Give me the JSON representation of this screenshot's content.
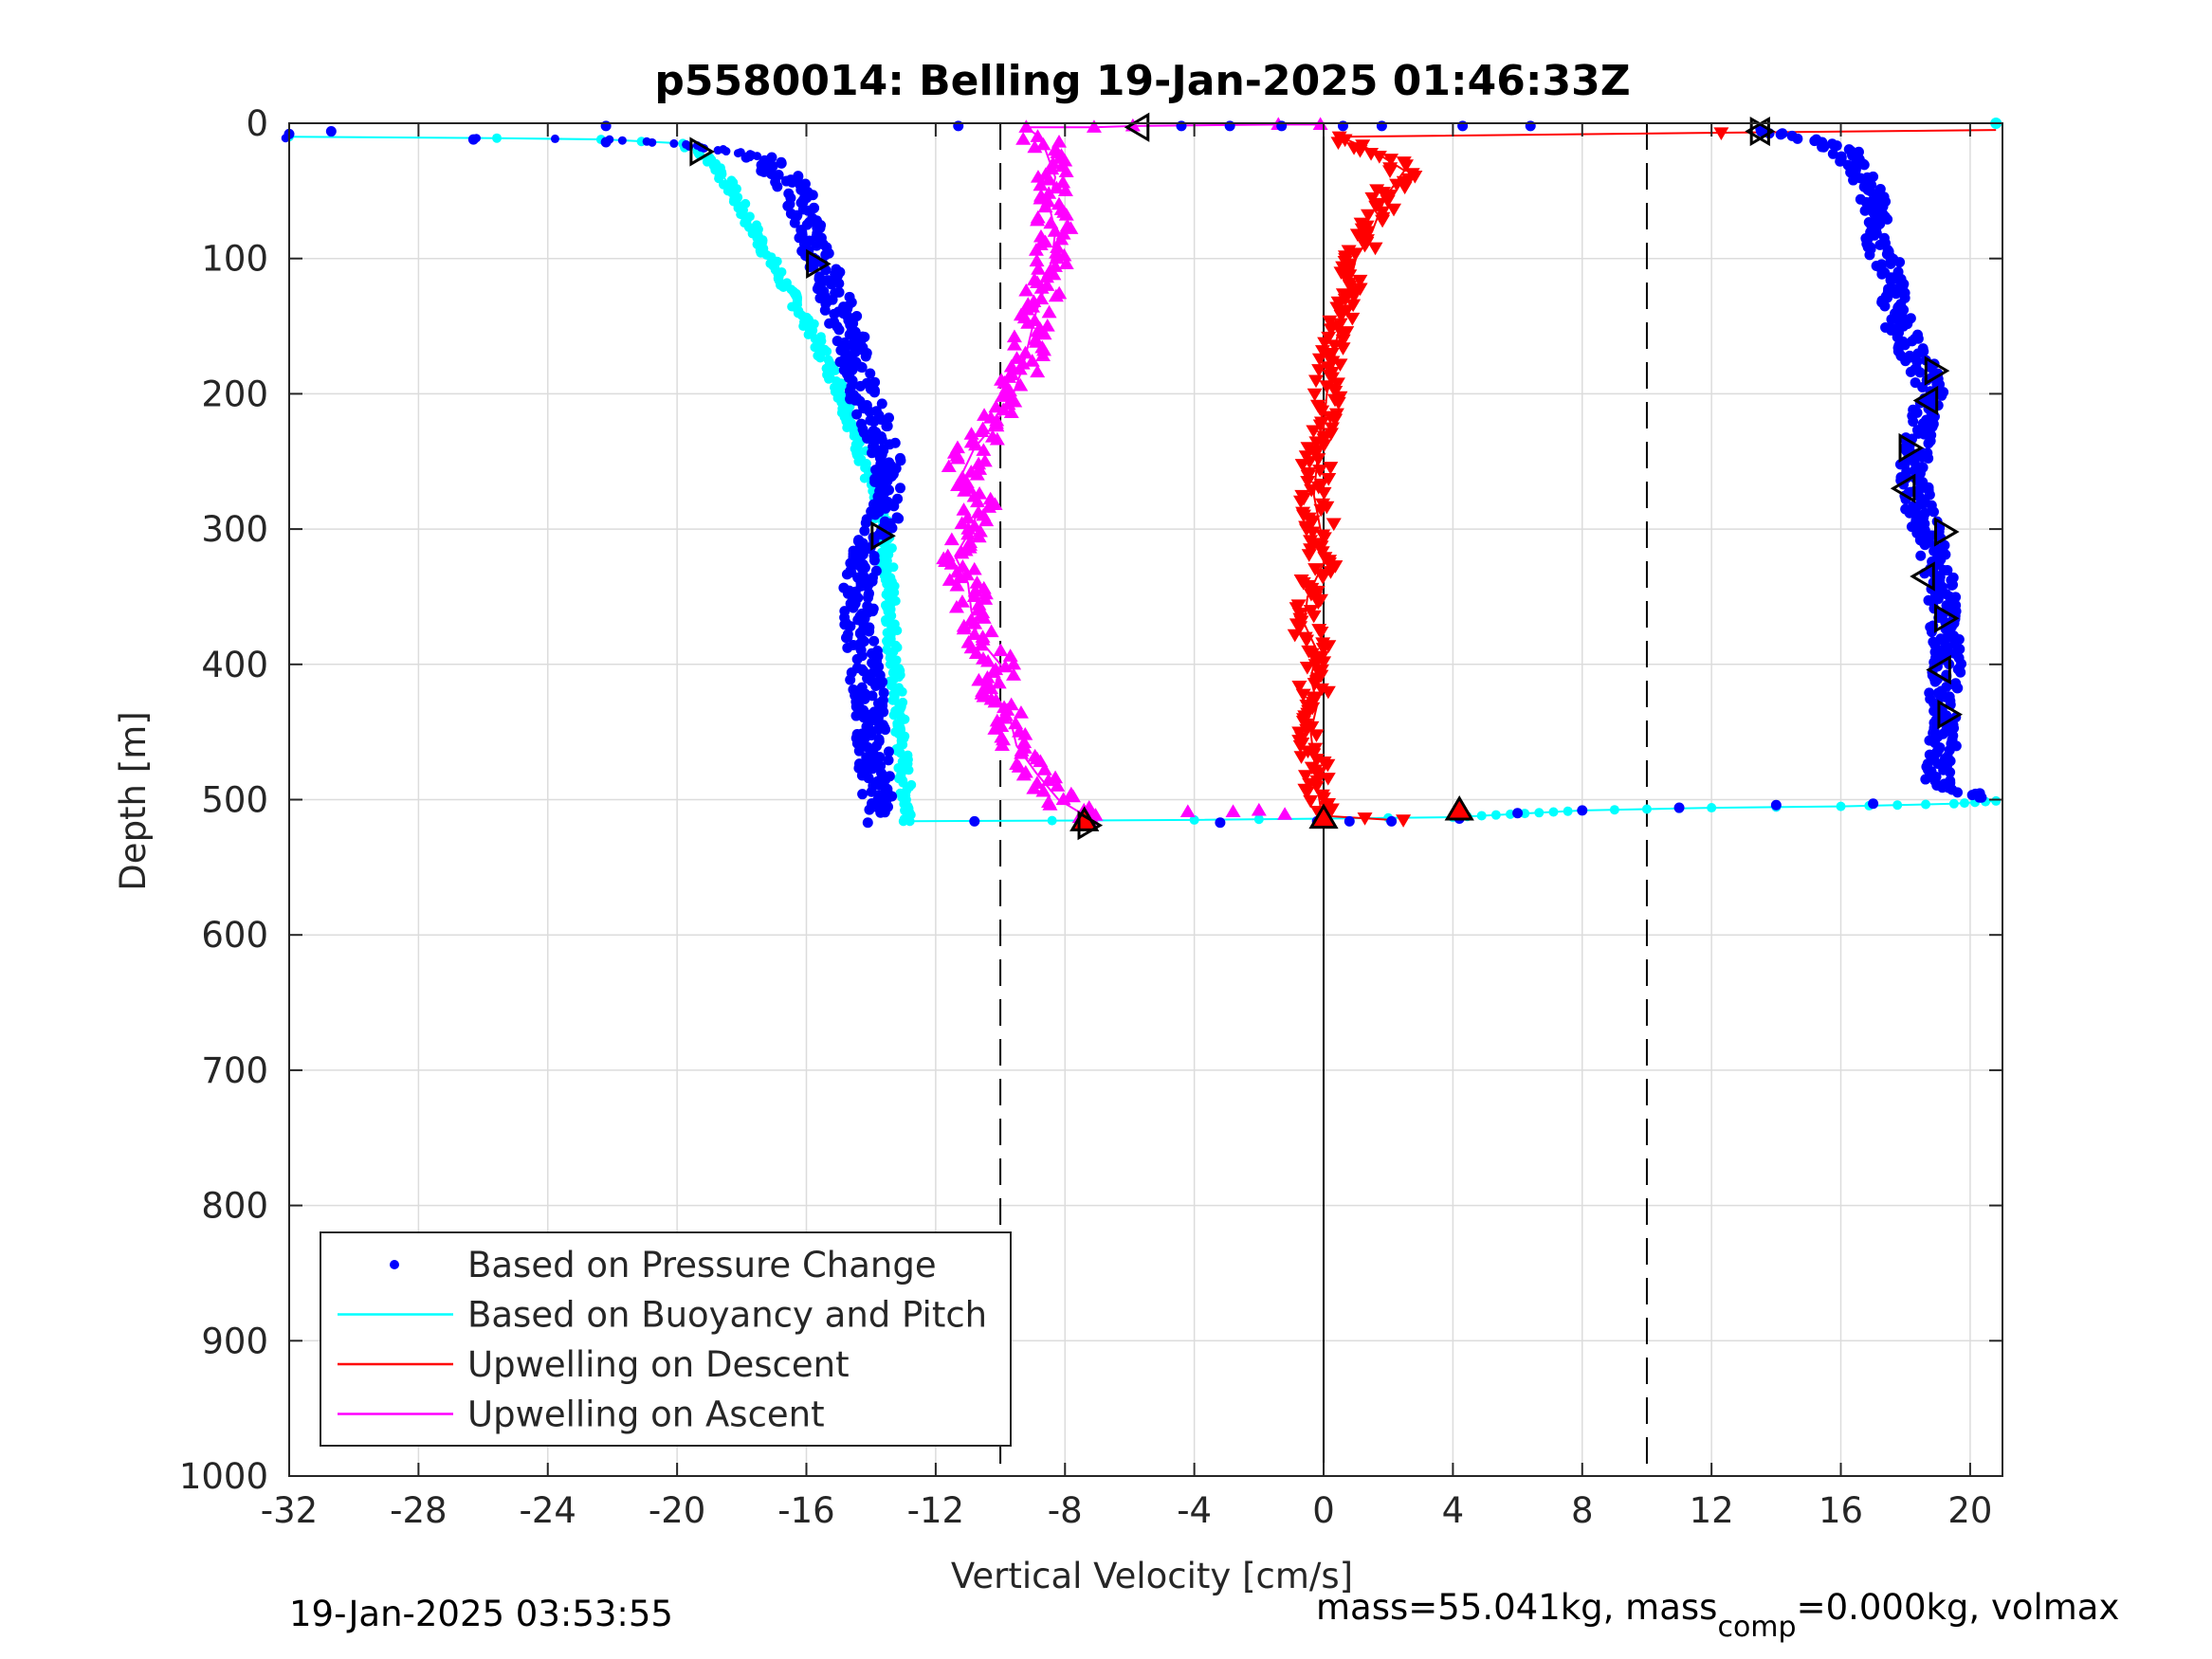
{
  "chart_data": {
    "type": "scatter",
    "title": "p5580014: Belling 19-Jan-2025 01:46:33Z",
    "xlabel": "Vertical Velocity [cm/s]",
    "ylabel": "Depth [m]",
    "xlim": [
      -32,
      21
    ],
    "ylim": [
      0,
      1000
    ],
    "y_reversed": true,
    "x_ticks": [
      -32,
      -28,
      -24,
      -20,
      -16,
      -12,
      -8,
      -4,
      0,
      4,
      8,
      12,
      16,
      20
    ],
    "y_ticks": [
      0,
      100,
      200,
      300,
      400,
      500,
      600,
      700,
      800,
      900,
      1000
    ],
    "grid": true,
    "reference_lines": [
      {
        "x": -10,
        "style": "dashed"
      },
      {
        "x": 0,
        "style": "solid"
      },
      {
        "x": 10,
        "style": "dashed"
      }
    ],
    "legend": {
      "placement": "bottom-left",
      "entries": [
        {
          "label": "Based on Pressure Change",
          "color": "#0000ff",
          "marker": "dot"
        },
        {
          "label": "Based on Buoyancy and Pitch",
          "color": "#00ffff",
          "marker": "line"
        },
        {
          "label": "Upwelling on Descent",
          "color": "#ff0000",
          "marker": "line"
        },
        {
          "label": "Upwelling on Ascent",
          "color": "#ff00ff",
          "marker": "line"
        }
      ]
    },
    "series": [
      {
        "name": "Based on Pressure Change",
        "color": "#0000ff",
        "descent": [
          [
            -17.5,
            25
          ],
          [
            -16.6,
            40
          ],
          [
            -16.1,
            60
          ],
          [
            -15.9,
            80
          ],
          [
            -15.4,
            110
          ],
          [
            -14.9,
            140
          ],
          [
            -14.6,
            165
          ],
          [
            -14.3,
            195
          ],
          [
            -13.7,
            230
          ],
          [
            -13.5,
            260
          ],
          [
            -13.6,
            290
          ],
          [
            -14.3,
            330
          ],
          [
            -14.4,
            360
          ],
          [
            -14.2,
            400
          ],
          [
            -14.0,
            440
          ],
          [
            -13.9,
            480
          ],
          [
            -13.7,
            510
          ]
        ],
        "ascent": [
          [
            20.8,
            499
          ],
          [
            19.0,
            490
          ],
          [
            19.2,
            460
          ],
          [
            19.1,
            430
          ],
          [
            19.3,
            400
          ],
          [
            19.2,
            370
          ],
          [
            19.0,
            330
          ],
          [
            18.5,
            290
          ],
          [
            18.2,
            260
          ],
          [
            18.4,
            230
          ],
          [
            18.8,
            200
          ],
          [
            18.5,
            180
          ],
          [
            17.8,
            150
          ],
          [
            17.6,
            120
          ],
          [
            17.2,
            90
          ],
          [
            17.1,
            60
          ],
          [
            16.6,
            40
          ],
          [
            16.1,
            20
          ],
          [
            14.5,
            10
          ],
          [
            13.2,
            5
          ]
        ],
        "surface_points": [
          [
            -32,
            8
          ],
          [
            -30.7,
            6
          ],
          [
            -26.3,
            12
          ],
          [
            -22.2,
            2
          ],
          [
            -22.2,
            14
          ],
          [
            -11.3,
            2
          ],
          [
            -4.4,
            2
          ],
          [
            -2.9,
            2
          ],
          [
            -1.3,
            2
          ],
          [
            0.6,
            2
          ],
          [
            1.8,
            2
          ],
          [
            4.3,
            2
          ],
          [
            6.4,
            2
          ]
        ],
        "bottom_points": [
          [
            -14.1,
            517
          ],
          [
            -10.8,
            516
          ],
          [
            -3.2,
            517
          ],
          [
            -0.2,
            516
          ],
          [
            0.8,
            516
          ],
          [
            2.1,
            516
          ],
          [
            4.2,
            514
          ],
          [
            6.0,
            510
          ],
          [
            8.0,
            508
          ],
          [
            11.0,
            506
          ],
          [
            14.0,
            504
          ],
          [
            17.0,
            503
          ]
        ]
      },
      {
        "name": "Based on Buoyancy and Pitch",
        "color": "#00ffff",
        "descent": [
          [
            -32,
            10
          ],
          [
            -25.6,
            11
          ],
          [
            -22.2,
            12
          ],
          [
            -19.8,
            15
          ],
          [
            -18.8,
            30
          ],
          [
            -18.3,
            50
          ],
          [
            -17.6,
            80
          ],
          [
            -16.9,
            110
          ],
          [
            -15.9,
            150
          ],
          [
            -14.9,
            200
          ],
          [
            -14.2,
            250
          ],
          [
            -13.6,
            300
          ],
          [
            -13.4,
            350
          ],
          [
            -13.3,
            400
          ],
          [
            -13.1,
            450
          ],
          [
            -12.9,
            500
          ],
          [
            -12.8,
            516
          ]
        ],
        "ascent": [
          [
            -12.8,
            516
          ],
          [
            -4.0,
            515
          ],
          [
            4.0,
            513
          ],
          [
            8.0,
            508
          ],
          [
            12.0,
            506
          ],
          [
            16.0,
            505
          ],
          [
            19.5,
            503
          ],
          [
            20.8,
            501
          ]
        ],
        "surface_points": [
          [
            20.8,
            0
          ]
        ]
      },
      {
        "name": "Upwelling on Descent",
        "color": "#ff0000",
        "values": [
          [
            20.8,
            5
          ],
          [
            12.3,
            7
          ],
          [
            0.5,
            10
          ],
          [
            1.5,
            20
          ],
          [
            2.5,
            35
          ],
          [
            1.9,
            55
          ],
          [
            1.5,
            80
          ],
          [
            1.0,
            100
          ],
          [
            0.8,
            120
          ],
          [
            0.6,
            140
          ],
          [
            0.4,
            160
          ],
          [
            0.3,
            180
          ],
          [
            0.1,
            200
          ],
          [
            0.0,
            225
          ],
          [
            -0.2,
            250
          ],
          [
            -0.3,
            275
          ],
          [
            -0.1,
            300
          ],
          [
            0.0,
            325
          ],
          [
            -0.5,
            350
          ],
          [
            -0.6,
            370
          ],
          [
            -0.2,
            390
          ],
          [
            -0.4,
            410
          ],
          [
            -0.2,
            430
          ],
          [
            -0.4,
            450
          ],
          [
            -0.3,
            470
          ],
          [
            -0.2,
            490
          ],
          [
            -0.1,
            505
          ],
          [
            0.0,
            512
          ],
          [
            2.1,
            515
          ]
        ]
      },
      {
        "name": "Upwelling on Ascent",
        "color": "#ff00ff",
        "values": [
          [
            -7.4,
            515
          ],
          [
            -7.5,
            510
          ],
          [
            -8.2,
            500
          ],
          [
            -8.9,
            480
          ],
          [
            -9.5,
            460
          ],
          [
            -9.7,
            440
          ],
          [
            -10.2,
            420
          ],
          [
            -10.0,
            400
          ],
          [
            -10.7,
            380
          ],
          [
            -10.9,
            360
          ],
          [
            -11.0,
            340
          ],
          [
            -11.4,
            320
          ],
          [
            -10.9,
            300
          ],
          [
            -10.6,
            280
          ],
          [
            -11.2,
            260
          ],
          [
            -10.8,
            240
          ],
          [
            -10.1,
            220
          ],
          [
            -9.6,
            200
          ],
          [
            -9.3,
            180
          ],
          [
            -9.1,
            160
          ],
          [
            -8.9,
            140
          ],
          [
            -8.6,
            120
          ],
          [
            -8.4,
            100
          ],
          [
            -8.3,
            80
          ],
          [
            -8.5,
            60
          ],
          [
            -8.3,
            40
          ],
          [
            -8.6,
            20
          ],
          [
            -8.8,
            10
          ],
          [
            -9.2,
            3
          ],
          [
            -7.1,
            3
          ],
          [
            -5.9,
            2
          ],
          [
            -1.4,
            1
          ],
          [
            -0.1,
            1
          ]
        ]
      }
    ],
    "turn_markers": [
      {
        "x": -19.3,
        "y": 21,
        "shape": "triangle-right"
      },
      {
        "x": -15.7,
        "y": 104,
        "shape": "triangle-right"
      },
      {
        "x": -13.7,
        "y": 305,
        "shape": "triangle-right"
      },
      {
        "x": -5.7,
        "y": 3,
        "shape": "triangle-left"
      },
      {
        "x": 13.5,
        "y": 6,
        "shape": "triangle-right"
      },
      {
        "x": 13.5,
        "y": 6,
        "shape": "triangle-left"
      },
      {
        "x": 18.9,
        "y": 183,
        "shape": "triangle-right"
      },
      {
        "x": 18.7,
        "y": 205,
        "shape": "triangle-left"
      },
      {
        "x": 18.1,
        "y": 240,
        "shape": "triangle-right"
      },
      {
        "x": 18.0,
        "y": 270,
        "shape": "triangle-left"
      },
      {
        "x": 19.2,
        "y": 302,
        "shape": "triangle-right"
      },
      {
        "x": 18.6,
        "y": 335,
        "shape": "triangle-left"
      },
      {
        "x": 19.2,
        "y": 366,
        "shape": "triangle-right"
      },
      {
        "x": 19.1,
        "y": 404,
        "shape": "triangle-left"
      },
      {
        "x": 19.3,
        "y": 437,
        "shape": "triangle-right"
      },
      {
        "x": -7.4,
        "y": 516,
        "shape": "triangle-up"
      },
      {
        "x": -7.3,
        "y": 519,
        "shape": "triangle-right"
      },
      {
        "x": 0.0,
        "y": 514,
        "shape": "triangle-up"
      },
      {
        "x": 4.2,
        "y": 508,
        "shape": "triangle-up"
      }
    ]
  },
  "footer": {
    "timestamp": "19-Jan-2025 03:53:55",
    "mass_label_prefix": "mass=55.041kg, mass",
    "mass_subscript": "comp",
    "mass_label_suffix": "=0.000kg, volmax"
  }
}
